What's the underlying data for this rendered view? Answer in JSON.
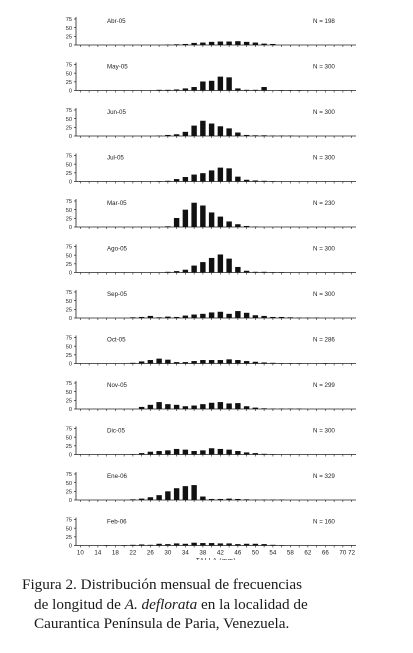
{
  "chart_data": {
    "type": "bar",
    "xlabel": "TALLA (mm)",
    "ylabel": "",
    "x_ticks": [
      10,
      14,
      18,
      22,
      26,
      30,
      34,
      38,
      42,
      46,
      50,
      54,
      58,
      62,
      66,
      70
    ],
    "x_tick_labels": [
      "10",
      "14",
      "18",
      "22",
      "26",
      "30",
      "34",
      "38",
      "42",
      "46",
      "50",
      "54",
      "58",
      "62",
      "66",
      "70"
    ],
    "minor_ticks_between_labels": [
      12,
      16,
      20,
      24,
      28,
      32,
      36,
      40,
      44,
      48,
      52,
      56,
      60,
      64,
      68,
      72
    ],
    "bin_centers": [
      10,
      12,
      14,
      16,
      18,
      20,
      22,
      24,
      26,
      28,
      30,
      32,
      34,
      36,
      38,
      40,
      42,
      44,
      46,
      48,
      50,
      52,
      54,
      56,
      58,
      60,
      62,
      64,
      66,
      68,
      70,
      72
    ],
    "y_ticks": [
      0,
      25,
      50,
      75
    ],
    "ylim": [
      0,
      75
    ],
    "extra_label": "72",
    "panels": [
      {
        "label": "Abr-05",
        "n_label": "N = 198",
        "values": [
          0,
          0,
          0,
          0,
          0,
          0,
          0,
          0,
          0,
          0,
          1,
          2,
          3,
          6,
          7,
          9,
          10,
          10,
          11,
          9,
          7,
          4,
          3,
          0,
          0,
          0,
          0,
          0,
          0,
          0,
          0,
          0
        ]
      },
      {
        "label": "May-05",
        "n_label": "N = 300",
        "values": [
          0,
          0,
          0,
          0,
          0,
          0,
          0,
          0,
          0,
          2,
          2,
          3,
          6,
          10,
          26,
          28,
          40,
          38,
          6,
          2,
          2,
          10,
          0,
          1,
          1,
          1,
          0,
          0,
          0,
          0,
          0,
          0
        ]
      },
      {
        "label": "Jun-05",
        "n_label": "N = 300",
        "values": [
          0,
          0,
          0,
          0,
          0,
          0,
          0,
          0,
          0,
          1,
          3,
          5,
          12,
          30,
          44,
          36,
          28,
          22,
          10,
          3,
          2,
          2,
          1,
          1,
          1,
          0,
          0,
          0,
          0,
          0,
          0,
          0
        ]
      },
      {
        "label": "Jul-05",
        "n_label": "N = 300",
        "values": [
          0,
          0,
          0,
          0,
          0,
          0,
          0,
          0,
          0,
          1,
          2,
          7,
          13,
          20,
          24,
          32,
          40,
          38,
          14,
          5,
          3,
          2,
          1,
          0,
          0,
          0,
          0,
          0,
          0,
          0,
          0,
          0
        ]
      },
      {
        "label": "Mar-05",
        "n_label": "N = 230",
        "values": [
          0,
          0,
          0,
          0,
          0,
          0,
          0,
          0,
          0,
          0,
          2,
          26,
          50,
          70,
          62,
          42,
          30,
          16,
          8,
          3,
          1,
          0,
          0,
          0,
          0,
          0,
          0,
          0,
          0,
          0,
          0,
          0
        ]
      },
      {
        "label": "Ago-05",
        "n_label": "N = 300",
        "values": [
          0,
          0,
          0,
          0,
          0,
          0,
          0,
          0,
          0,
          0,
          2,
          4,
          8,
          20,
          30,
          42,
          52,
          40,
          16,
          5,
          2,
          2,
          1,
          1,
          0,
          0,
          0,
          0,
          0,
          0,
          0,
          0
        ]
      },
      {
        "label": "Sep-05",
        "n_label": "N = 300",
        "values": [
          0,
          0,
          0,
          0,
          0,
          0,
          2,
          3,
          6,
          2,
          4,
          3,
          7,
          10,
          12,
          16,
          18,
          12,
          20,
          15,
          8,
          6,
          3,
          3,
          2,
          1,
          1,
          1,
          0,
          0,
          0,
          0
        ]
      },
      {
        "label": "Oct-05",
        "n_label": "N = 286",
        "values": [
          0,
          0,
          0,
          0,
          0,
          0,
          2,
          6,
          10,
          14,
          11,
          4,
          4,
          7,
          10,
          10,
          10,
          12,
          10,
          7,
          5,
          3,
          2,
          1,
          1,
          1,
          0,
          0,
          1,
          0,
          0,
          0
        ]
      },
      {
        "label": "Nov-05",
        "n_label": "N = 299",
        "values": [
          0,
          0,
          0,
          0,
          0,
          0,
          0,
          6,
          12,
          20,
          14,
          12,
          8,
          10,
          14,
          18,
          20,
          16,
          17,
          8,
          4,
          2,
          1,
          1,
          1,
          1,
          0,
          0,
          0,
          0,
          0,
          0
        ]
      },
      {
        "label": "Dic-05",
        "n_label": "N = 300",
        "values": [
          0,
          0,
          0,
          0,
          0,
          0,
          1,
          4,
          8,
          10,
          12,
          16,
          14,
          10,
          12,
          18,
          16,
          14,
          10,
          6,
          4,
          2,
          1,
          0,
          0,
          0,
          0,
          0,
          0,
          0,
          0,
          0
        ]
      },
      {
        "label": "Ene-06",
        "n_label": "N = 329",
        "values": [
          0,
          0,
          0,
          0,
          0,
          0,
          2,
          4,
          8,
          14,
          25,
          34,
          40,
          43,
          10,
          3,
          3,
          4,
          3,
          2,
          1,
          1,
          1,
          1,
          0,
          0,
          0,
          0,
          0,
          0,
          0,
          0
        ]
      },
      {
        "label": "Feb-06",
        "n_label": "N = 160",
        "values": [
          0,
          0,
          0,
          1,
          0,
          1,
          2,
          3,
          2,
          5,
          4,
          6,
          5,
          8,
          7,
          7,
          6,
          6,
          4,
          5,
          5,
          4,
          2,
          1,
          0,
          0,
          0,
          0,
          0,
          0,
          0,
          0
        ]
      }
    ]
  },
  "caption": {
    "line1": "Figura 2. Distribución mensual de frecuencias",
    "line2_pre": "de longitud de ",
    "line2_species": "A. deflorata",
    "line2_post": " en la localidad de",
    "line3": "Caurantica Península de Paria, Venezuela."
  }
}
